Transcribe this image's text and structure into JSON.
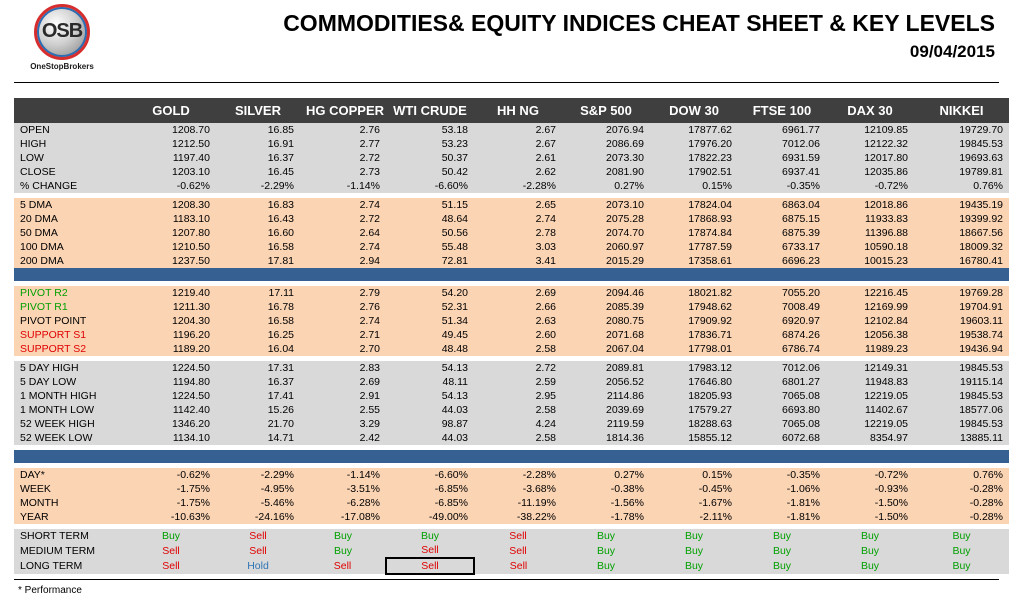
{
  "header": {
    "logo_text": "OSB",
    "logo_sub": "OneStopBrokers",
    "title": "COMMODITIES& EQUITY INDICES CHEAT SHEET & KEY LEVELS",
    "date": "09/04/2015"
  },
  "columns": [
    "GOLD",
    "SILVER",
    "HG COPPER",
    "WTI CRUDE",
    "HH NG",
    "S&P 500",
    "DOW 30",
    "FTSE 100",
    "DAX 30",
    "NIKKEI"
  ],
  "sections": [
    {
      "bg": "g",
      "rows": [
        {
          "label": "OPEN",
          "values": [
            "1208.70",
            "16.85",
            "2.76",
            "53.18",
            "2.67",
            "2076.94",
            "17877.62",
            "6961.77",
            "12109.85",
            "19729.70"
          ]
        },
        {
          "label": "HIGH",
          "values": [
            "1212.50",
            "16.91",
            "2.77",
            "53.23",
            "2.67",
            "2086.69",
            "17976.20",
            "7012.06",
            "12122.32",
            "19845.53"
          ]
        },
        {
          "label": "LOW",
          "values": [
            "1197.40",
            "16.37",
            "2.72",
            "50.37",
            "2.61",
            "2073.30",
            "17822.23",
            "6931.59",
            "12017.80",
            "19693.63"
          ]
        },
        {
          "label": "CLOSE",
          "values": [
            "1203.10",
            "16.45",
            "2.73",
            "50.42",
            "2.62",
            "2081.90",
            "17902.51",
            "6937.41",
            "12035.86",
            "19789.81"
          ]
        },
        {
          "label": "% CHANGE",
          "values": [
            "-0.62%",
            "-2.29%",
            "-1.14%",
            "-6.60%",
            "-2.28%",
            "0.27%",
            "0.15%",
            "-0.35%",
            "-0.72%",
            "0.76%"
          ]
        }
      ]
    },
    {
      "bg": "o",
      "rows": [
        {
          "label": "5 DMA",
          "values": [
            "1208.30",
            "16.83",
            "2.74",
            "51.15",
            "2.65",
            "2073.10",
            "17824.04",
            "6863.04",
            "12018.86",
            "19435.19"
          ]
        },
        {
          "label": "20 DMA",
          "values": [
            "1183.10",
            "16.43",
            "2.72",
            "48.64",
            "2.74",
            "2075.28",
            "17868.93",
            "6875.15",
            "11933.83",
            "19399.92"
          ]
        },
        {
          "label": "50 DMA",
          "values": [
            "1207.80",
            "16.60",
            "2.64",
            "50.56",
            "2.78",
            "2074.70",
            "17874.84",
            "6875.39",
            "11396.88",
            "18667.56"
          ]
        },
        {
          "label": "100 DMA",
          "values": [
            "1210.50",
            "16.58",
            "2.74",
            "55.48",
            "3.03",
            "2060.97",
            "17787.59",
            "6733.17",
            "10590.18",
            "18009.32"
          ]
        },
        {
          "label": "200 DMA",
          "values": [
            "1237.50",
            "17.81",
            "2.94",
            "72.81",
            "3.41",
            "2015.29",
            "17358.61",
            "6696.23",
            "10015.23",
            "16780.41"
          ]
        }
      ]
    },
    {
      "bg": "o",
      "rows": [
        {
          "label": "PIVOT R2",
          "color": "green",
          "values": [
            "1219.40",
            "17.11",
            "2.79",
            "54.20",
            "2.69",
            "2094.46",
            "18021.82",
            "7055.20",
            "12216.45",
            "19769.28"
          ]
        },
        {
          "label": "PIVOT R1",
          "color": "green",
          "values": [
            "1211.30",
            "16.78",
            "2.76",
            "52.31",
            "2.66",
            "2085.39",
            "17948.62",
            "7008.49",
            "12169.99",
            "19704.91"
          ]
        },
        {
          "label": "PIVOT POINT",
          "color": "",
          "values": [
            "1204.30",
            "16.58",
            "2.74",
            "51.34",
            "2.63",
            "2080.75",
            "17909.92",
            "6920.97",
            "12102.84",
            "19603.11"
          ]
        },
        {
          "label": "SUPPORT S1",
          "color": "red",
          "values": [
            "1196.20",
            "16.25",
            "2.71",
            "49.45",
            "2.60",
            "2071.68",
            "17836.71",
            "6874.26",
            "12056.38",
            "19538.74"
          ]
        },
        {
          "label": "SUPPORT S2",
          "color": "red",
          "values": [
            "1189.20",
            "16.04",
            "2.70",
            "48.48",
            "2.58",
            "2067.04",
            "17798.01",
            "6786.74",
            "11989.23",
            "19436.94"
          ]
        }
      ]
    },
    {
      "bg": "g",
      "rows": [
        {
          "label": "5 DAY HIGH",
          "values": [
            "1224.50",
            "17.31",
            "2.83",
            "54.13",
            "2.72",
            "2089.81",
            "17983.12",
            "7012.06",
            "12149.31",
            "19845.53"
          ]
        },
        {
          "label": "5 DAY LOW",
          "values": [
            "1194.80",
            "16.37",
            "2.69",
            "48.11",
            "2.59",
            "2056.52",
            "17646.80",
            "6801.27",
            "11948.83",
            "19115.14"
          ]
        },
        {
          "label": "1 MONTH HIGH",
          "values": [
            "1224.50",
            "17.41",
            "2.91",
            "54.13",
            "2.95",
            "2114.86",
            "18205.93",
            "7065.08",
            "12219.05",
            "19845.53"
          ]
        },
        {
          "label": "1 MONTH LOW",
          "values": [
            "1142.40",
            "15.26",
            "2.55",
            "44.03",
            "2.58",
            "2039.69",
            "17579.27",
            "6693.80",
            "11402.67",
            "18577.06"
          ]
        },
        {
          "label": "52 WEEK HIGH",
          "values": [
            "1346.20",
            "21.70",
            "3.29",
            "98.87",
            "4.24",
            "2119.59",
            "18288.63",
            "7065.08",
            "12219.05",
            "19845.53"
          ]
        },
        {
          "label": "52 WEEK LOW",
          "values": [
            "1134.10",
            "14.71",
            "2.42",
            "44.03",
            "2.58",
            "1814.36",
            "15855.12",
            "6072.68",
            "8354.97",
            "13885.11"
          ]
        }
      ]
    },
    {
      "bg": "o",
      "rows": [
        {
          "label": "DAY*",
          "values": [
            "-0.62%",
            "-2.29%",
            "-1.14%",
            "-6.60%",
            "-2.28%",
            "0.27%",
            "0.15%",
            "-0.35%",
            "-0.72%",
            "0.76%"
          ]
        },
        {
          "label": "WEEK",
          "values": [
            "-1.75%",
            "-4.95%",
            "-3.51%",
            "-6.85%",
            "-3.68%",
            "-0.38%",
            "-0.45%",
            "-1.06%",
            "-0.93%",
            "-0.28%"
          ]
        },
        {
          "label": "MONTH",
          "values": [
            "-1.75%",
            "-5.46%",
            "-6.28%",
            "-6.85%",
            "-11.19%",
            "-1.56%",
            "-1.67%",
            "-1.81%",
            "-1.50%",
            "-0.28%"
          ]
        },
        {
          "label": "YEAR",
          "values": [
            "-10.63%",
            "-24.16%",
            "-17.08%",
            "-49.00%",
            "-38.22%",
            "-1.78%",
            "-2.11%",
            "-1.81%",
            "-1.50%",
            "-0.28%"
          ]
        }
      ]
    }
  ],
  "signals": [
    {
      "label": "SHORT TERM",
      "values": [
        "Buy",
        "Sell",
        "Buy",
        "Buy",
        "Sell",
        "Buy",
        "Buy",
        "Buy",
        "Buy",
        "Buy"
      ]
    },
    {
      "label": "MEDIUM TERM",
      "values": [
        "Sell",
        "Sell",
        "Buy",
        "Sell",
        "Sell",
        "Buy",
        "Buy",
        "Buy",
        "Buy",
        "Buy"
      ]
    },
    {
      "label": "LONG TERM",
      "values": [
        "Sell",
        "Hold",
        "Sell",
        "Sell",
        "Sell",
        "Buy",
        "Buy",
        "Buy",
        "Buy",
        "Buy"
      ]
    }
  ],
  "signal_colors": {
    "Buy": "#00a000",
    "Sell": "#e00000",
    "Hold": "#2e74b5"
  },
  "footnote": "* Performance"
}
